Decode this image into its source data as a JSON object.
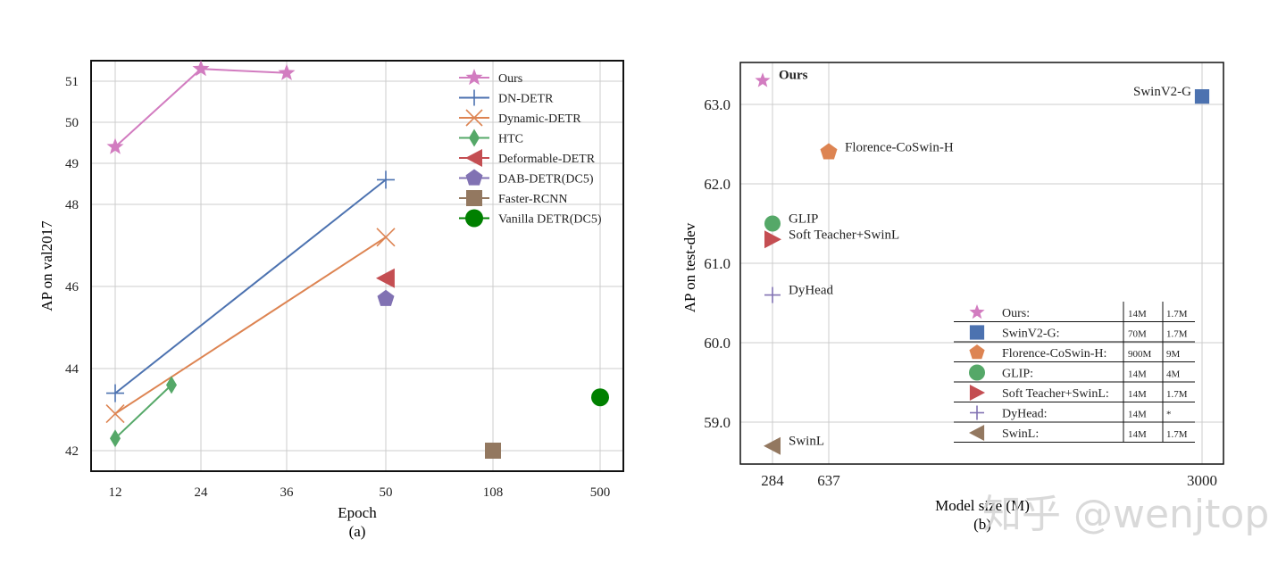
{
  "watermark": "知乎 @wenjtop",
  "chart_data": [
    {
      "type": "line",
      "caption": "(a)",
      "xlabel": "Epoch",
      "ylabel": "AP on val2017",
      "categories": [
        "12",
        "24",
        "36",
        "50",
        "108",
        "500"
      ],
      "yticks": [
        42,
        44,
        46,
        48,
        49,
        50,
        51
      ],
      "grid": true,
      "legend_position": "top-right",
      "series": [
        {
          "name": "Ours",
          "color": "#d27cc0",
          "marker": "star",
          "line": true,
          "points": [
            {
              "x": "12",
              "y": 49.4
            },
            {
              "x": "24",
              "y": 51.3
            },
            {
              "x": "36",
              "y": 51.2
            }
          ]
        },
        {
          "name": "DN-DETR",
          "color": "#4c72b0",
          "marker": "plus",
          "line": true,
          "points": [
            {
              "x": "12",
              "y": 43.4
            },
            {
              "x": "50",
              "y": 48.6
            }
          ]
        },
        {
          "name": "Dynamic-DETR",
          "color": "#dd8452",
          "marker": "x",
          "line": true,
          "points": [
            {
              "x": "12",
              "y": 42.9
            },
            {
              "x": "50",
              "y": 47.2
            }
          ]
        },
        {
          "name": "HTC",
          "color": "#55a868",
          "marker": "thin_diamond",
          "line": true,
          "points": [
            {
              "x": "12",
              "y": 42.3
            },
            {
              "x": "20",
              "y": 43.6
            }
          ]
        },
        {
          "name": "Deformable-DETR",
          "color": "#c44e52",
          "marker": "triangle_left",
          "line": false,
          "points": [
            {
              "x": "50",
              "y": 46.2
            }
          ]
        },
        {
          "name": "DAB-DETR(DC5)",
          "color": "#8172b3",
          "marker": "pentagon",
          "line": false,
          "points": [
            {
              "x": "50",
              "y": 45.7
            }
          ]
        },
        {
          "name": "Faster-RCNN",
          "color": "#937860",
          "marker": "square",
          "line": false,
          "points": [
            {
              "x": "108",
              "y": 42.0
            }
          ]
        },
        {
          "name": "Vanilla DETR(DC5)",
          "color": "#008000",
          "marker": "circle",
          "line": false,
          "points": [
            {
              "x": "500",
              "y": 43.3
            }
          ]
        }
      ]
    },
    {
      "type": "scatter",
      "caption": "(b)",
      "xlabel": "Model size (M)",
      "ylabel": "AP on test-dev",
      "xticks": [
        "284",
        "637",
        "3000"
      ],
      "yticks": [
        "59.0",
        "60.0",
        "61.0",
        "62.0",
        "63.0"
      ],
      "ylim": [
        58.5,
        63.5
      ],
      "grid": true,
      "points": [
        {
          "name": "Ours",
          "label": "Ours",
          "bold": true,
          "x": 284,
          "y": 63.3,
          "color": "#d27cc0",
          "marker": "star"
        },
        {
          "name": "SwinV2-G",
          "label": "SwinV2-G",
          "x": 3000,
          "y": 63.1,
          "color": "#4c72b0",
          "marker": "square"
        },
        {
          "name": "Florence-CoSwin-H",
          "label": "Florence-CoSwin-H",
          "x": 637,
          "y": 62.4,
          "color": "#dd8452",
          "marker": "pentagon"
        },
        {
          "name": "GLIP",
          "label": "GLIP",
          "x": 284,
          "y": 61.5,
          "color": "#55a868",
          "marker": "circle"
        },
        {
          "name": "Soft Teacher+SwinL",
          "label": "Soft Teacher+SwinL",
          "x": 284,
          "y": 61.3,
          "color": "#c44e52",
          "marker": "triangle_right"
        },
        {
          "name": "DyHead",
          "label": "DyHead",
          "x": 284,
          "y": 60.6,
          "color": "#8172b3",
          "marker": "plus"
        },
        {
          "name": "SwinL",
          "label": "SwinL",
          "x": 284,
          "y": 58.7,
          "color": "#937860",
          "marker": "triangle_left"
        }
      ],
      "legend_table": [
        {
          "name": "Ours:",
          "col1": "14M",
          "col2": "1.7M",
          "color": "#d27cc0",
          "marker": "star"
        },
        {
          "name": "SwinV2-G:",
          "col1": "70M",
          "col2": "1.7M",
          "color": "#4c72b0",
          "marker": "square"
        },
        {
          "name": "Florence-CoSwin-H:",
          "col1": "900M",
          "col2": "9M",
          "color": "#dd8452",
          "marker": "pentagon"
        },
        {
          "name": "GLIP:",
          "col1": "14M",
          "col2": "4M",
          "color": "#55a868",
          "marker": "circle"
        },
        {
          "name": "Soft Teacher+SwinL:",
          "col1": "14M",
          "col2": "1.7M",
          "color": "#c44e52",
          "marker": "triangle_right"
        },
        {
          "name": "DyHead:",
          "col1": "14M",
          "col2": "*",
          "color": "#8172b3",
          "marker": "plus"
        },
        {
          "name": "SwinL:",
          "col1": "14M",
          "col2": "1.7M",
          "color": "#937860",
          "marker": "triangle_left"
        }
      ]
    }
  ]
}
